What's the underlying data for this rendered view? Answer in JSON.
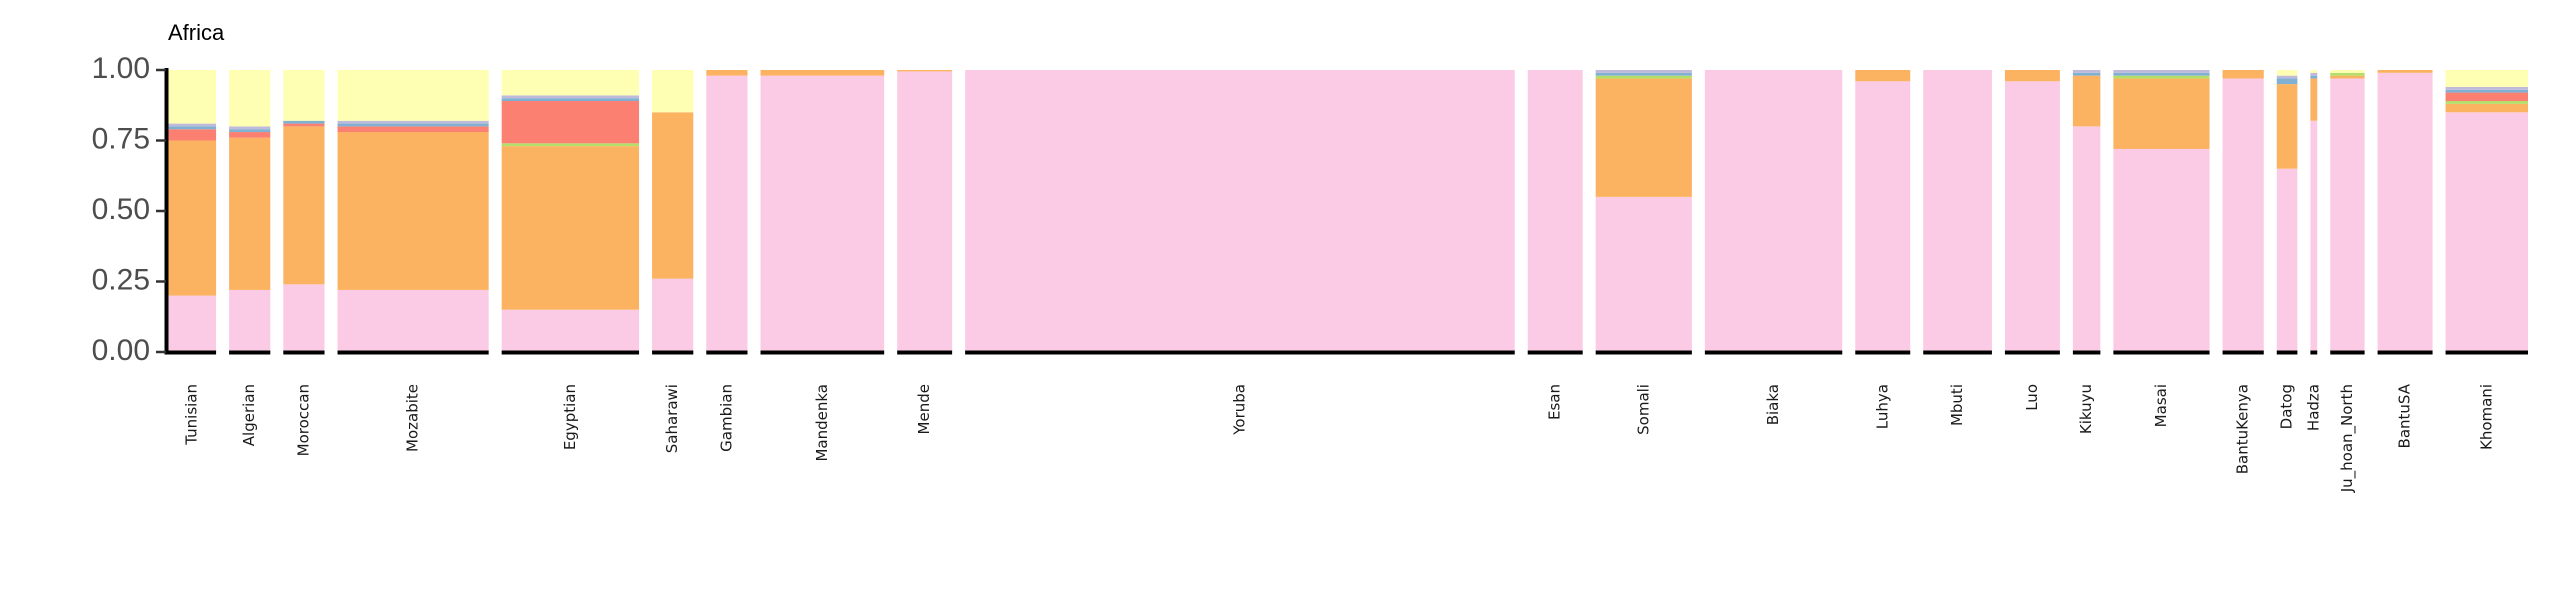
{
  "chart_data": {
    "type": "bar",
    "subtype": "stacked-admixture",
    "title": "Africa",
    "xlabel": "",
    "ylabel": "",
    "ylim": [
      0,
      1
    ],
    "yticks": [
      0.0,
      0.25,
      0.5,
      0.75,
      1.0
    ],
    "ytick_labels": [
      "0.00",
      "0.25",
      "0.50",
      "0.75",
      "1.00"
    ],
    "grid": false,
    "legend": "none",
    "components": [
      {
        "key": "pink",
        "color": "#FBCBE6"
      },
      {
        "key": "orange",
        "color": "#FBB362"
      },
      {
        "key": "green",
        "color": "#B3DE69"
      },
      {
        "key": "red",
        "color": "#FB8072"
      },
      {
        "key": "blue",
        "color": "#80B1D3"
      },
      {
        "key": "purple",
        "color": "#BEBADA"
      },
      {
        "key": "yellow",
        "color": "#FFFFB3"
      }
    ],
    "groups": [
      {
        "name": "Tunisian",
        "n": 7,
        "pink": 0.2,
        "orange": 0.55,
        "green": 0.0,
        "red": 0.04,
        "blue": 0.01,
        "purple": 0.01,
        "yellow": 0.19
      },
      {
        "name": "Algerian",
        "n": 6,
        "pink": 0.22,
        "orange": 0.54,
        "green": 0.0,
        "red": 0.02,
        "blue": 0.01,
        "purple": 0.01,
        "yellow": 0.2
      },
      {
        "name": "Moroccan",
        "n": 6,
        "pink": 0.24,
        "orange": 0.56,
        "green": 0.0,
        "red": 0.01,
        "blue": 0.01,
        "purple": 0.0,
        "yellow": 0.18
      },
      {
        "name": "Mozabite",
        "n": 22,
        "pink": 0.22,
        "orange": 0.56,
        "green": 0.0,
        "red": 0.02,
        "blue": 0.01,
        "purple": 0.01,
        "yellow": 0.18
      },
      {
        "name": "Egyptian",
        "n": 20,
        "pink": 0.15,
        "orange": 0.58,
        "green": 0.01,
        "red": 0.15,
        "blue": 0.01,
        "purple": 0.01,
        "yellow": 0.09
      },
      {
        "name": "Saharawi",
        "n": 6,
        "pink": 0.26,
        "orange": 0.59,
        "green": 0.0,
        "red": 0.0,
        "blue": 0.0,
        "purple": 0.0,
        "yellow": 0.15
      },
      {
        "name": "Gambian",
        "n": 6,
        "pink": 0.98,
        "orange": 0.02,
        "green": 0.0,
        "red": 0.0,
        "blue": 0.0,
        "purple": 0.0,
        "yellow": 0.0
      },
      {
        "name": "Mandenka",
        "n": 18,
        "pink": 0.98,
        "orange": 0.02,
        "green": 0.0,
        "red": 0.0,
        "blue": 0.0,
        "purple": 0.0,
        "yellow": 0.0
      },
      {
        "name": "Mende",
        "n": 8,
        "pink": 0.995,
        "orange": 0.005,
        "green": 0.0,
        "red": 0.0,
        "blue": 0.0,
        "purple": 0.0,
        "yellow": 0.0
      },
      {
        "name": "Yoruba",
        "n": 80,
        "pink": 1.0,
        "orange": 0.0,
        "green": 0.0,
        "red": 0.0,
        "blue": 0.0,
        "purple": 0.0,
        "yellow": 0.0
      },
      {
        "name": "Esan",
        "n": 8,
        "pink": 1.0,
        "orange": 0.0,
        "green": 0.0,
        "red": 0.0,
        "blue": 0.0,
        "purple": 0.0,
        "yellow": 0.0
      },
      {
        "name": "Somali",
        "n": 14,
        "pink": 0.55,
        "orange": 0.42,
        "green": 0.01,
        "red": 0.0,
        "blue": 0.01,
        "purple": 0.01,
        "yellow": 0.0
      },
      {
        "name": "Biaka",
        "n": 20,
        "pink": 1.0,
        "orange": 0.0,
        "green": 0.0,
        "red": 0.0,
        "blue": 0.0,
        "purple": 0.0,
        "yellow": 0.0
      },
      {
        "name": "Luhya",
        "n": 8,
        "pink": 0.96,
        "orange": 0.04,
        "green": 0.0,
        "red": 0.0,
        "blue": 0.0,
        "purple": 0.0,
        "yellow": 0.0
      },
      {
        "name": "Mbuti",
        "n": 10,
        "pink": 1.0,
        "orange": 0.0,
        "green": 0.0,
        "red": 0.0,
        "blue": 0.0,
        "purple": 0.0,
        "yellow": 0.0
      },
      {
        "name": "Luo",
        "n": 8,
        "pink": 0.96,
        "orange": 0.04,
        "green": 0.0,
        "red": 0.0,
        "blue": 0.0,
        "purple": 0.0,
        "yellow": 0.0
      },
      {
        "name": "Kikuyu",
        "n": 4,
        "pink": 0.8,
        "orange": 0.18,
        "green": 0.0,
        "red": 0.0,
        "blue": 0.01,
        "purple": 0.01,
        "yellow": 0.0
      },
      {
        "name": "Masai",
        "n": 14,
        "pink": 0.72,
        "orange": 0.25,
        "green": 0.01,
        "red": 0.0,
        "blue": 0.01,
        "purple": 0.01,
        "yellow": 0.0
      },
      {
        "name": "BantuKenya",
        "n": 6,
        "pink": 0.97,
        "orange": 0.03,
        "green": 0.0,
        "red": 0.0,
        "blue": 0.0,
        "purple": 0.0,
        "yellow": 0.0
      },
      {
        "name": "Datog",
        "n": 3,
        "pink": 0.65,
        "orange": 0.3,
        "green": 0.0,
        "red": 0.0,
        "blue": 0.02,
        "purple": 0.01,
        "yellow": 0.02
      },
      {
        "name": "Hadza",
        "n": 1,
        "pink": 0.82,
        "orange": 0.15,
        "green": 0.0,
        "red": 0.0,
        "blue": 0.01,
        "purple": 0.01,
        "yellow": 0.01
      },
      {
        "name": "Ju_hoan_North",
        "n": 5,
        "pink": 0.97,
        "orange": 0.01,
        "green": 0.01,
        "red": 0.0,
        "blue": 0.0,
        "purple": 0.0,
        "yellow": 0.01
      },
      {
        "name": "BantuSA",
        "n": 8,
        "pink": 0.99,
        "orange": 0.01,
        "green": 0.0,
        "red": 0.0,
        "blue": 0.0,
        "purple": 0.0,
        "yellow": 0.0
      },
      {
        "name": "Khomani",
        "n": 12,
        "pink": 0.85,
        "orange": 0.03,
        "green": 0.01,
        "red": 0.03,
        "blue": 0.01,
        "purple": 0.01,
        "yellow": 0.06
      }
    ]
  }
}
